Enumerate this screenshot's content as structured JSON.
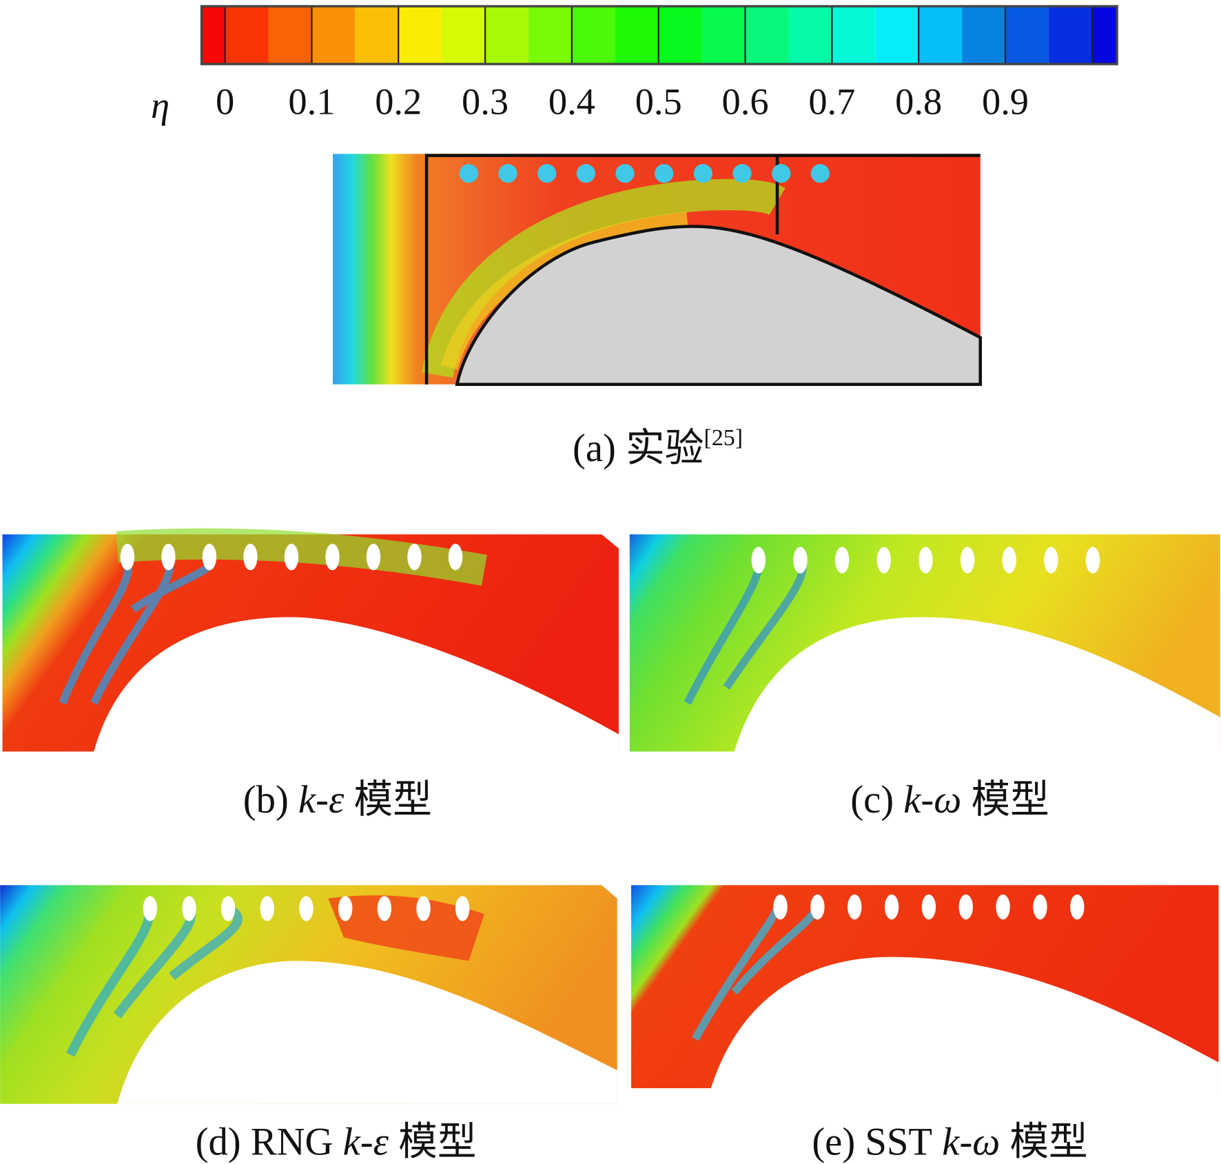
{
  "colorbar": {
    "label": "η",
    "ticks": [
      0,
      0.1,
      0.2,
      0.3,
      0.4,
      0.5,
      0.6,
      0.7,
      0.8,
      0.9
    ]
  },
  "panels": [
    {
      "tag": "(a)",
      "text": "实验",
      "ref": "[25]"
    },
    {
      "tag": "(b)",
      "model": "k-ε",
      "text": "模型"
    },
    {
      "tag": "(c)",
      "model": "k-ω",
      "text": "模型"
    },
    {
      "tag": "(d)",
      "prefix": "RNG",
      "model": "k-ε",
      "text": "模型"
    },
    {
      "tag": "(e)",
      "prefix": "SST",
      "model": "k-ω",
      "text": "模型"
    }
  ]
}
